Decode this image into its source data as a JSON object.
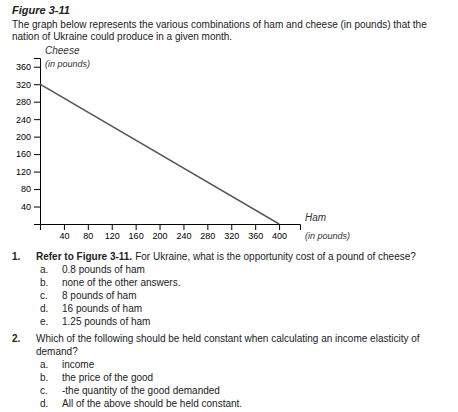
{
  "chart_data": {
    "type": "line",
    "title": "Figure 3-11",
    "subtitle": "The graph below represents the various combinations of ham and cheese (in pounds) that the nation of Ukraine could produce in a given month.",
    "xlabel": "Ham",
    "ylabel": "Cheese",
    "annotations": [
      {
        "text": "(in pounds)",
        "axis": "y"
      },
      {
        "text": "(in pounds)",
        "axis": "x"
      }
    ],
    "x": [
      0,
      400
    ],
    "series": [
      {
        "color": "#555555",
        "values": [
          320,
          0
        ]
      }
    ],
    "xlim": [
      0,
      435
    ],
    "ylim": [
      0,
      380
    ],
    "xticks": [
      40,
      80,
      120,
      160,
      200,
      240,
      280,
      320,
      360,
      400
    ],
    "yticks": [
      40,
      80,
      120,
      160,
      200,
      240,
      280,
      320,
      360
    ],
    "grid": false
  },
  "questions": [
    {
      "number": "1.",
      "lead": "Refer to Figure 3-11.",
      "text": "For Ukraine, what is the opportunity cost of a pound of cheese?",
      "answers": [
        {
          "letter": "a.",
          "text": "0.8 pounds of ham"
        },
        {
          "letter": "b.",
          "text": "none of the other answers."
        },
        {
          "letter": "c.",
          "text": "8 pounds of ham"
        },
        {
          "letter": "d.",
          "text": "16 pounds of ham"
        },
        {
          "letter": "e.",
          "text": "1.25 pounds of ham"
        }
      ]
    },
    {
      "number": "2.",
      "text": "Which of the following should be held constant when calculating an income elasticity of demand?",
      "answers": [
        {
          "letter": "a.",
          "text": "income"
        },
        {
          "letter": "b.",
          "text": "the price of the good"
        },
        {
          "letter": "c.",
          "text": "-the quantity of the good demanded"
        },
        {
          "letter": "d.",
          "text": "All of the above should be held constant."
        }
      ]
    }
  ]
}
